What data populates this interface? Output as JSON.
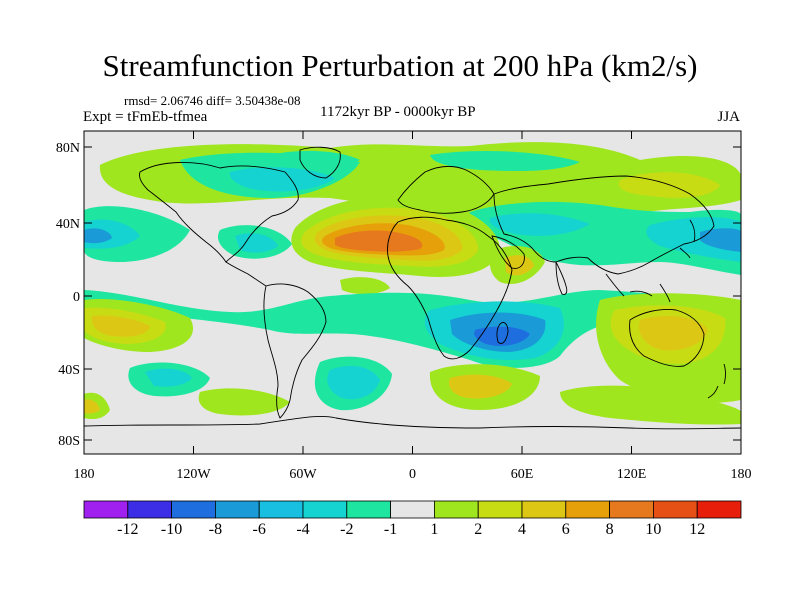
{
  "title": "Streamfunction Perturbation at 200 hPa (km2/s)",
  "stats": "rmsd= 2.06746  diff= 3.50438e-08",
  "experiment": "Expt = tFmEb-tfmea",
  "period": "1172kyr BP - 0000kyr BP",
  "season": "JJA",
  "map": {
    "lat_ticks": [
      "80N",
      "40N",
      "0",
      "40S",
      "80S"
    ],
    "lon_ticks": [
      "180",
      "120W",
      "60W",
      "0",
      "60E",
      "120E",
      "180"
    ],
    "background_color": "#e6e6e6",
    "coastline_color": "#000000"
  },
  "colorbar": {
    "colors": [
      "#a020f0",
      "#3c2ee6",
      "#1e6ee0",
      "#1a9bd8",
      "#18bfe0",
      "#14d3d0",
      "#1ee6a0",
      "#e6e6e6",
      "#a0e61e",
      "#c8dc14",
      "#dcc814",
      "#e6a00a",
      "#e6781e",
      "#e65014",
      "#e61e0a"
    ],
    "labels": [
      "-12",
      "-10",
      "-8",
      "-6",
      "-4",
      "-2",
      "-1",
      "1",
      "2",
      "4",
      "6",
      "8",
      "10",
      "12"
    ]
  },
  "field_features": [
    {
      "region": "North Atlantic / Africa",
      "sign": "positive",
      "peak": 7
    },
    {
      "region": "Australia",
      "sign": "positive",
      "peak": 5
    },
    {
      "region": "South Pacific",
      "sign": "positive",
      "peak": 4
    },
    {
      "region": "South Indian Ocean",
      "sign": "negative",
      "peak": -6
    },
    {
      "region": "North Pacific",
      "sign": "negative",
      "peak": -5
    },
    {
      "region": "Northern Canada",
      "sign": "negative",
      "peak": -3
    }
  ]
}
